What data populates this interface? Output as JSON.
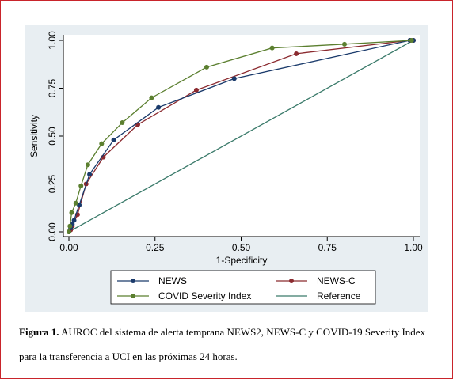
{
  "chart_data": {
    "type": "line",
    "xlabel": "1-Specificity",
    "ylabel": "Sensitivity",
    "xlim": [
      0,
      1
    ],
    "ylim": [
      0,
      1
    ],
    "x_ticks": [
      "0.00",
      "0.25",
      "0.50",
      "0.75",
      "1.00"
    ],
    "y_ticks": [
      "0.00",
      "0.25",
      "0.50",
      "0.75",
      "1.00"
    ],
    "grid": false,
    "legend_position": "bottom",
    "series": [
      {
        "name": "NEWS",
        "color": "#1a3a6b",
        "markers": true,
        "points": [
          [
            0,
            0
          ],
          [
            0.005,
            0.02
          ],
          [
            0.01,
            0.04
          ],
          [
            0.015,
            0.06
          ],
          [
            0.03,
            0.14
          ],
          [
            0.06,
            0.3
          ],
          [
            0.13,
            0.48
          ],
          [
            0.26,
            0.65
          ],
          [
            0.48,
            0.8
          ],
          [
            0.99,
            1.0
          ],
          [
            1.0,
            1.0
          ]
        ]
      },
      {
        "name": "NEWS-C",
        "color": "#8b2a2f",
        "markers": true,
        "points": [
          [
            0,
            0
          ],
          [
            0.005,
            0.01
          ],
          [
            0.01,
            0.03
          ],
          [
            0.025,
            0.09
          ],
          [
            0.05,
            0.25
          ],
          [
            0.1,
            0.39
          ],
          [
            0.2,
            0.56
          ],
          [
            0.37,
            0.74
          ],
          [
            0.66,
            0.93
          ],
          [
            0.99,
            1.0
          ],
          [
            1.0,
            1.0
          ]
        ]
      },
      {
        "name": "COVID Severity Index",
        "color": "#5b7f2f",
        "markers": true,
        "points": [
          [
            0,
            0
          ],
          [
            0.003,
            0.03
          ],
          [
            0.008,
            0.1
          ],
          [
            0.02,
            0.15
          ],
          [
            0.035,
            0.24
          ],
          [
            0.055,
            0.35
          ],
          [
            0.095,
            0.46
          ],
          [
            0.155,
            0.57
          ],
          [
            0.24,
            0.7
          ],
          [
            0.4,
            0.86
          ],
          [
            0.59,
            0.96
          ],
          [
            0.8,
            0.98
          ],
          [
            0.995,
            1.0
          ]
        ]
      },
      {
        "name": "Reference",
        "color": "#3a7a6a",
        "markers": false,
        "points": [
          [
            0,
            0
          ],
          [
            1,
            1
          ]
        ]
      }
    ]
  },
  "caption": {
    "label": "Figura 1.",
    "text": " AUROC del sistema de alerta temprana NEWS2, NEWS-C y COVID-19 Severity Index para la transferencia a UCI en las próximas 24 horas."
  }
}
